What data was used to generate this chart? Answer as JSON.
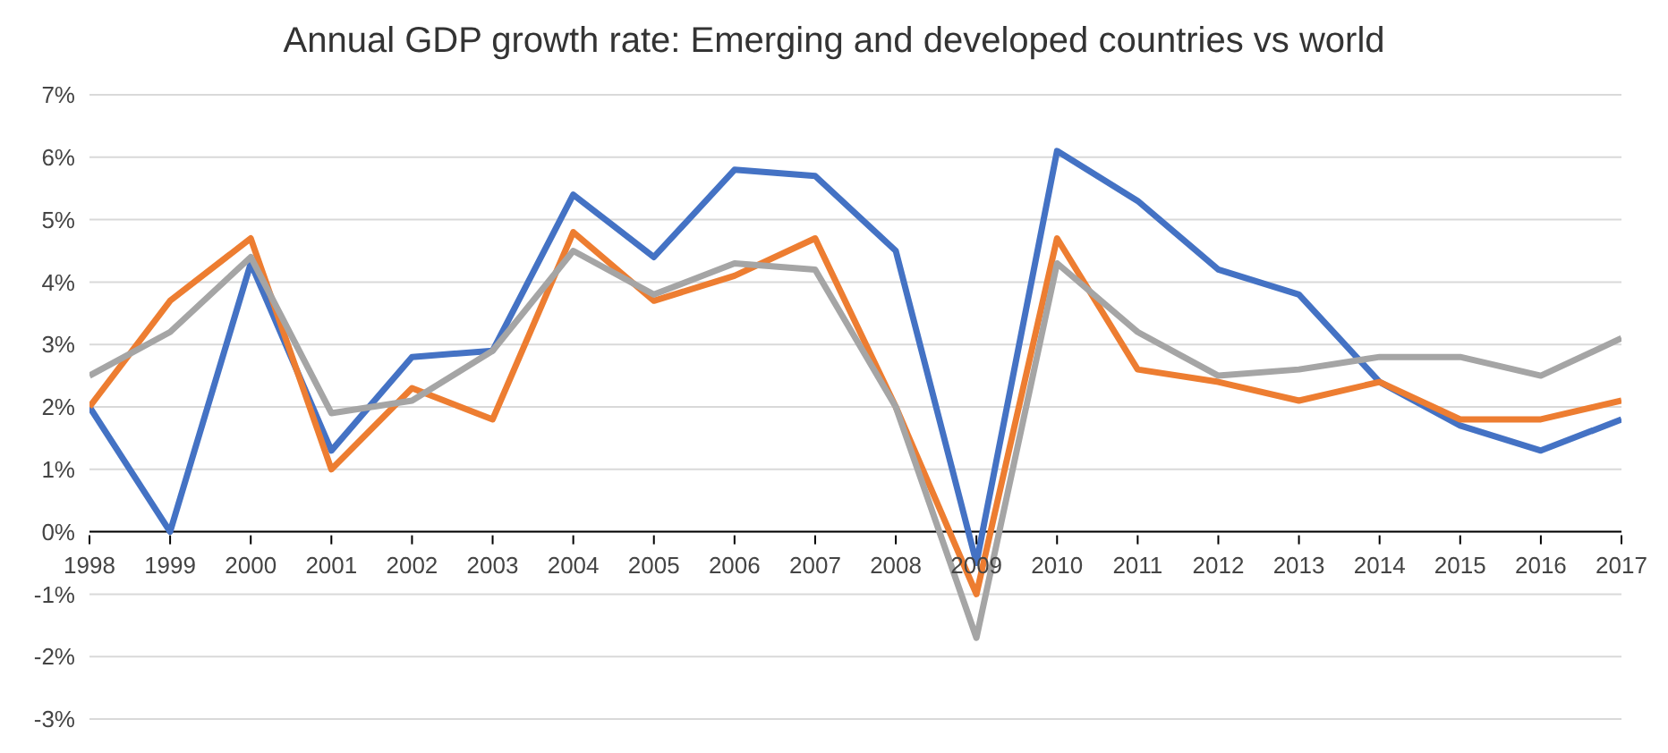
{
  "chart_data": {
    "type": "line",
    "title": "Annual GDP growth rate: Emerging and developed countries vs world",
    "categories": [
      "1998",
      "1999",
      "2000",
      "2001",
      "2002",
      "2003",
      "2004",
      "2005",
      "2006",
      "2007",
      "2008",
      "2009",
      "2010",
      "2011",
      "2012",
      "2013",
      "2014",
      "2015",
      "2016",
      "2017"
    ],
    "series": [
      {
        "color": "#4472c4",
        "values": [
          2.0,
          0.0,
          4.3,
          1.3,
          2.8,
          2.9,
          5.4,
          4.4,
          5.8,
          5.7,
          4.5,
          -0.5,
          6.1,
          5.3,
          4.2,
          3.8,
          2.4,
          1.7,
          1.3,
          1.8
        ]
      },
      {
        "color": "#ed7d31",
        "values": [
          2.0,
          3.7,
          4.7,
          1.0,
          2.3,
          1.8,
          4.8,
          3.7,
          4.1,
          4.7,
          2.0,
          -1.0,
          4.7,
          2.6,
          2.4,
          2.1,
          2.4,
          1.8,
          1.8,
          2.1
        ]
      },
      {
        "color": "#a5a5a5",
        "values": [
          2.5,
          3.2,
          4.4,
          1.9,
          2.1,
          2.9,
          4.5,
          3.8,
          4.3,
          4.2,
          2.0,
          -1.7,
          4.3,
          3.2,
          2.5,
          2.6,
          2.8,
          2.8,
          2.5,
          3.1
        ]
      }
    ],
    "ylim": [
      -3,
      7
    ],
    "yticks": [
      {
        "value": -3,
        "label": "-3%"
      },
      {
        "value": -2,
        "label": "-2%"
      },
      {
        "value": -1,
        "label": "-1%"
      },
      {
        "value": 0,
        "label": "0%"
      },
      {
        "value": 1,
        "label": "1%"
      },
      {
        "value": 2,
        "label": "2%"
      },
      {
        "value": 3,
        "label": "3%"
      },
      {
        "value": 4,
        "label": "4%"
      },
      {
        "value": 5,
        "label": "5%"
      },
      {
        "value": 6,
        "label": "6%"
      },
      {
        "value": 7,
        "label": "7%"
      }
    ],
    "grid": "y",
    "legend": false,
    "marker": "none",
    "line_style": "solid"
  }
}
